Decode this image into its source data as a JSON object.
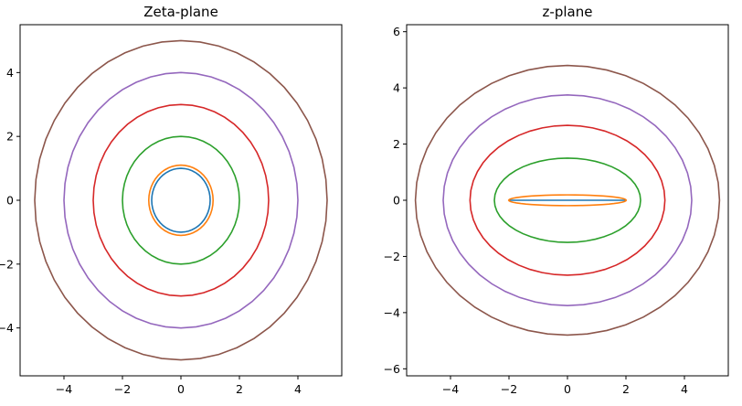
{
  "chart_data": [
    {
      "type": "line",
      "title": "Zeta-plane",
      "xlabel": "",
      "ylabel": "",
      "xlim": [
        -5.5,
        5.5
      ],
      "ylim": [
        -5.5,
        5.5
      ],
      "xticks": [
        -4,
        -2,
        0,
        2,
        4
      ],
      "yticks": [
        -4,
        -2,
        0,
        2,
        4
      ],
      "grid": false,
      "series": [
        {
          "shape": "circle",
          "cx": 0,
          "cy": 0,
          "rx": 1.0,
          "ry": 1.0,
          "color": "#1f77b4"
        },
        {
          "shape": "circle",
          "cx": 0,
          "cy": 0,
          "rx": 1.1,
          "ry": 1.1,
          "color": "#ff7f0e"
        },
        {
          "shape": "circle",
          "cx": 0,
          "cy": 0,
          "rx": 2.0,
          "ry": 2.0,
          "color": "#2ca02c"
        },
        {
          "shape": "circle",
          "cx": 0,
          "cy": 0,
          "rx": 3.0,
          "ry": 3.0,
          "color": "#d62728"
        },
        {
          "shape": "circle",
          "cx": 0,
          "cy": 0,
          "rx": 4.0,
          "ry": 4.0,
          "color": "#9467bd"
        },
        {
          "shape": "circle",
          "cx": 0,
          "cy": 0,
          "rx": 5.0,
          "ry": 5.0,
          "color": "#8c564b"
        }
      ]
    },
    {
      "type": "line",
      "title": "z-plane",
      "xlabel": "",
      "ylabel": "",
      "xlim": [
        -5.5,
        5.5
      ],
      "ylim": [
        -6.25,
        6.25
      ],
      "xticks": [
        -4,
        -2,
        0,
        2,
        4
      ],
      "yticks": [
        -6,
        -4,
        -2,
        0,
        2,
        4,
        6
      ],
      "grid": false,
      "series": [
        {
          "shape": "ellipse",
          "cx": 0,
          "cy": 0,
          "rx": 2.0,
          "ry": 0.0,
          "color": "#1f77b4"
        },
        {
          "shape": "ellipse",
          "cx": 0,
          "cy": 0,
          "rx": 2.009,
          "ry": 0.191,
          "color": "#ff7f0e"
        },
        {
          "shape": "ellipse",
          "cx": 0,
          "cy": 0,
          "rx": 2.5,
          "ry": 1.5,
          "color": "#2ca02c"
        },
        {
          "shape": "ellipse",
          "cx": 0,
          "cy": 0,
          "rx": 3.333,
          "ry": 2.667,
          "color": "#d62728"
        },
        {
          "shape": "ellipse",
          "cx": 0,
          "cy": 0,
          "rx": 4.25,
          "ry": 3.75,
          "color": "#9467bd"
        },
        {
          "shape": "ellipse",
          "cx": 0,
          "cy": 0,
          "rx": 5.2,
          "ry": 4.8,
          "color": "#8c564b"
        }
      ]
    }
  ]
}
